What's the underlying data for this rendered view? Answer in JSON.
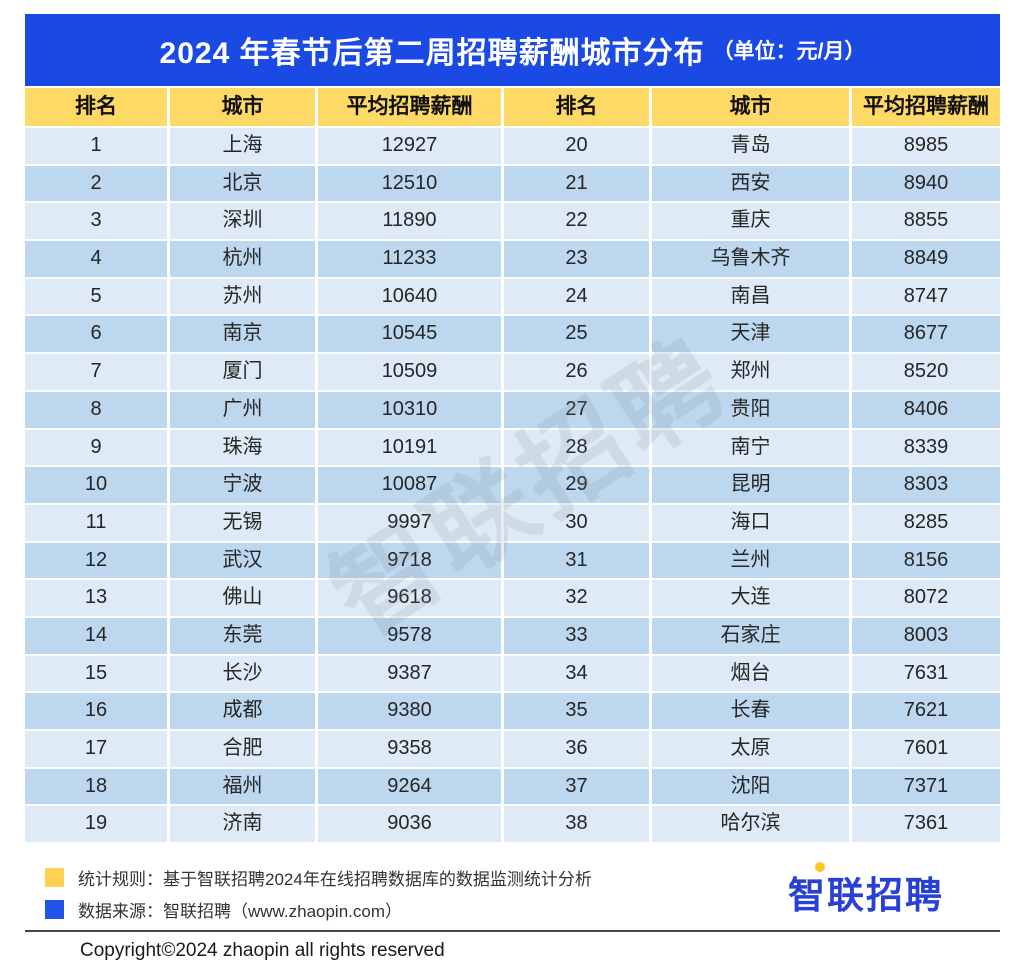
{
  "banner": {
    "title": "2024 年春节后第二周招聘薪酬城市分布",
    "unit": "（单位：元/月）"
  },
  "table": {
    "headers": [
      "排名",
      "城市",
      "平均招聘薪酬",
      "排名",
      "城市",
      "平均招聘薪酬"
    ]
  },
  "chart_data": {
    "type": "table",
    "title": "2024 年春节后第二周招聘薪酬城市分布",
    "unit": "元/月",
    "columns": [
      "排名",
      "城市",
      "平均招聘薪酬"
    ],
    "layout": "two side-by-side panels: ranks 1-19 left, ranks 20-38 right",
    "rows": [
      [
        1,
        "上海",
        12927
      ],
      [
        2,
        "北京",
        12510
      ],
      [
        3,
        "深圳",
        11890
      ],
      [
        4,
        "杭州",
        11233
      ],
      [
        5,
        "苏州",
        10640
      ],
      [
        6,
        "南京",
        10545
      ],
      [
        7,
        "厦门",
        10509
      ],
      [
        8,
        "广州",
        10310
      ],
      [
        9,
        "珠海",
        10191
      ],
      [
        10,
        "宁波",
        10087
      ],
      [
        11,
        "无锡",
        9997
      ],
      [
        12,
        "武汉",
        9718
      ],
      [
        13,
        "佛山",
        9618
      ],
      [
        14,
        "东莞",
        9578
      ],
      [
        15,
        "长沙",
        9387
      ],
      [
        16,
        "成都",
        9380
      ],
      [
        17,
        "合肥",
        9358
      ],
      [
        18,
        "福州",
        9264
      ],
      [
        19,
        "济南",
        9036
      ],
      [
        20,
        "青岛",
        8985
      ],
      [
        21,
        "西安",
        8940
      ],
      [
        22,
        "重庆",
        8855
      ],
      [
        23,
        "乌鲁木齐",
        8849
      ],
      [
        24,
        "南昌",
        8747
      ],
      [
        25,
        "天津",
        8677
      ],
      [
        26,
        "郑州",
        8520
      ],
      [
        27,
        "贵阳",
        8406
      ],
      [
        28,
        "南宁",
        8339
      ],
      [
        29,
        "昆明",
        8303
      ],
      [
        30,
        "海口",
        8285
      ],
      [
        31,
        "兰州",
        8156
      ],
      [
        32,
        "大连",
        8072
      ],
      [
        33,
        "石家庄",
        8003
      ],
      [
        34,
        "烟台",
        7631
      ],
      [
        35,
        "长春",
        7621
      ],
      [
        36,
        "太原",
        7601
      ],
      [
        37,
        "沈阳",
        7371
      ],
      [
        38,
        "哈尔滨",
        7361
      ]
    ]
  },
  "watermark": {
    "text": "智联招聘"
  },
  "footer": {
    "note_rule": "统计规则：基于智联招聘2024年在线招聘数据库的数据监测统计分析",
    "note_source": "数据来源：智联招聘（www.zhaopin.com）",
    "logo_text": "智联招聘",
    "copyright": "Copyright©2024 zhaopin all rights reserved"
  },
  "colors": {
    "banner_blue": "#1A49E3",
    "header_yellow": "#FFD966",
    "row_light": "#DEEAF6",
    "row_dark": "#BDD7EE",
    "legend_yellow": "#FFD152",
    "legend_blue": "#2053E6",
    "logo_blue": "#2840D4"
  }
}
